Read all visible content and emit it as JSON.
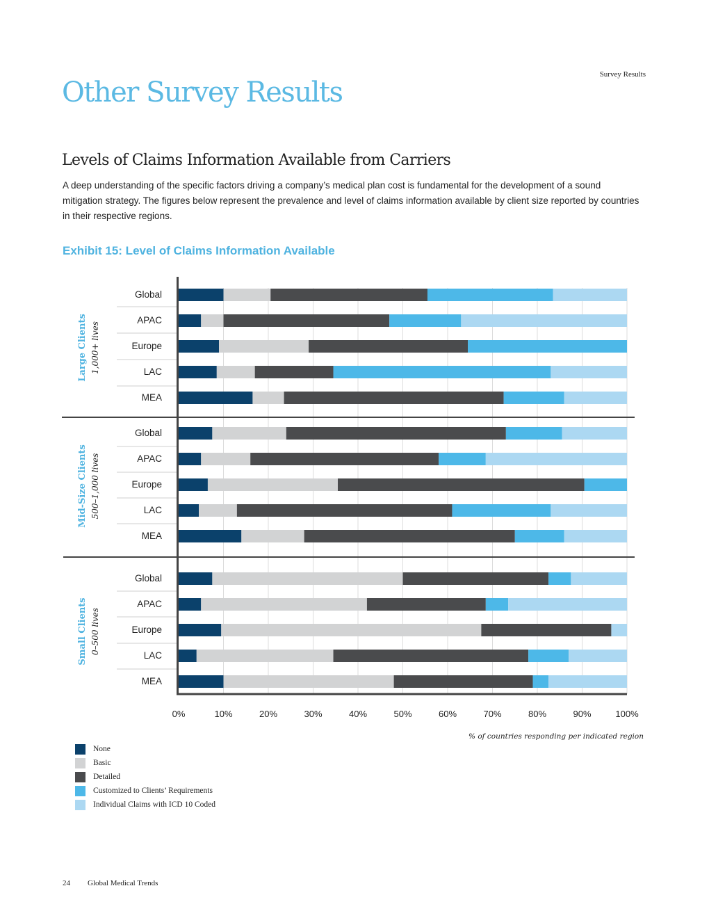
{
  "header": {
    "section": "Survey Results"
  },
  "page": {
    "title": "Other Survey Results",
    "section_title": "Levels of Claims Information Available from Carriers",
    "intro": "A deep understanding of the specific factors driving a company’s medical plan cost is fundamental for the development of a sound mitigation strategy.  The figures below represent the prevalence and level of claims information available by client size reported by countries in their respective regions.",
    "exhibit_title": "Exhibit 15: Level of Claims Information Available"
  },
  "footer": {
    "page_number": "24",
    "publication": "Global Medical Trends"
  },
  "colors": {
    "None": "#0b416b",
    "Basic": "#d2d3d4",
    "Detailed": "#4a4b4d",
    "Customized": "#4db8e8",
    "Individual": "#acd8f2",
    "group_label": "#4fb3e0"
  },
  "chart_data": {
    "type": "bar",
    "orientation": "horizontal",
    "stacked": true,
    "title": "Exhibit 15: Level of Claims Information Available",
    "xlabel": "% of countries responding per indicated region",
    "xlim": [
      0,
      100
    ],
    "x_ticks": [
      "0%",
      "10%",
      "20%",
      "30%",
      "40%",
      "50%",
      "60%",
      "70%",
      "80%",
      "90%",
      "100%"
    ],
    "series_names": [
      "None",
      "Basic",
      "Detailed",
      "Customized to Clients’ Requirements",
      "Individual Claims with ICD 10 Coded"
    ],
    "groups": [
      {
        "name": "Large Clients",
        "subtitle": "1,000+ lives",
        "categories": [
          "Global",
          "APAC",
          "Europe",
          "LAC",
          "MEA"
        ],
        "values": [
          [
            10,
            10.5,
            35,
            28,
            16.5
          ],
          [
            5,
            5,
            37,
            16,
            37
          ],
          [
            9,
            20,
            35.5,
            35.5,
            0
          ],
          [
            8.5,
            8.5,
            17.5,
            48.5,
            17
          ],
          [
            16.5,
            7,
            49,
            13.5,
            14
          ]
        ]
      },
      {
        "name": "Mid-Size Clients",
        "subtitle": "500–1,000 lives",
        "categories": [
          "Global",
          "APAC",
          "Europe",
          "LAC",
          "MEA"
        ],
        "values": [
          [
            7.5,
            16.5,
            49,
            12.5,
            14.5
          ],
          [
            5,
            11,
            42,
            10.5,
            31.5
          ],
          [
            6.5,
            29,
            55,
            9.5,
            0
          ],
          [
            4.5,
            8.5,
            48,
            22,
            17
          ],
          [
            14,
            14,
            47,
            11,
            14
          ]
        ]
      },
      {
        "name": "Small Clients",
        "subtitle": "0–500 lives",
        "categories": [
          "Global",
          "APAC",
          "Europe",
          "LAC",
          "MEA"
        ],
        "values": [
          [
            7.5,
            42.5,
            32.5,
            5,
            12.5
          ],
          [
            5,
            37,
            26.5,
            5,
            26.5
          ],
          [
            9.5,
            58,
            29,
            0,
            3.5
          ],
          [
            4,
            30.5,
            43.5,
            9,
            13
          ],
          [
            10,
            38,
            31,
            3.5,
            17.5
          ]
        ]
      }
    ]
  }
}
